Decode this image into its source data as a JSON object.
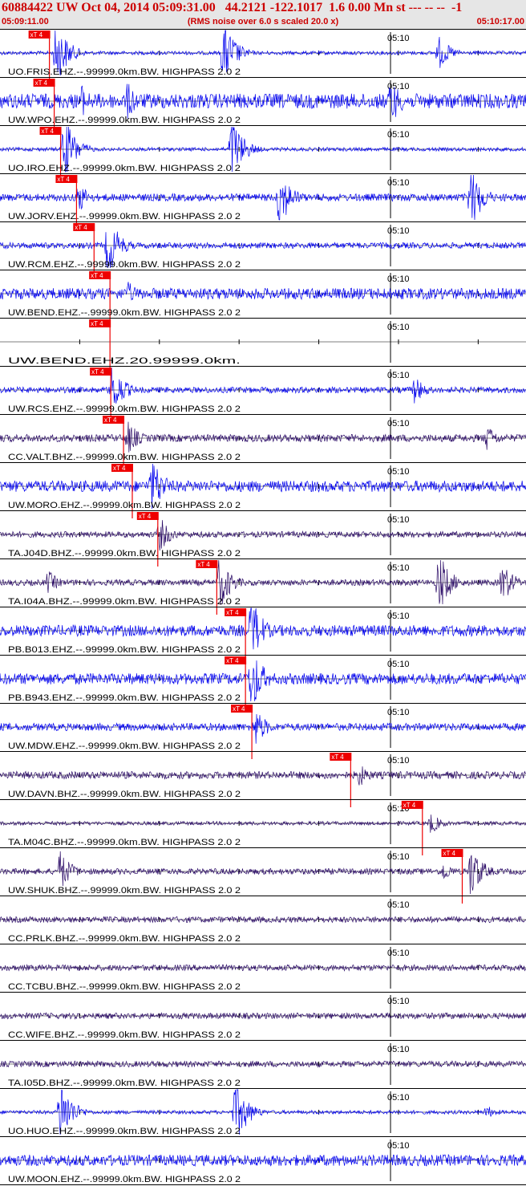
{
  "header": {
    "title": "60884422 UW Oct 04, 2014 05:09:31.00   44.2121 -122.1017  1.6 0.00 Mn st --- -- --  -1",
    "subtitle": "(RMS noise over 6.0 s scaled 20.0 x)",
    "start_time": "05:09:11.00",
    "end_time": "05:10:17.00"
  },
  "colors": {
    "header_bg": "#e6e6e6",
    "header_text": "#cc0000",
    "trace_blue": "#0000ee",
    "trace_purple": "#2a0a66",
    "pick_red": "#ee0000",
    "grid": "#000000"
  },
  "chart_data": {
    "type": "line",
    "x_unit": "time",
    "x_range": [
      "05:09:11.00",
      "05:10:17.00"
    ],
    "minute_marker": "05:10",
    "pick_label": "xT 4",
    "traces": [
      {
        "label": "UO.FRIS.EHZ.--.99999.0km.BW. HIGHPASS  2.0  2",
        "color": "blue",
        "pick_time": "05:09:17.2",
        "bursts": [
          {
            "t": "05:09:18.0",
            "amp": 1.0
          },
          {
            "t": "05:09:39.0",
            "amp": 1.0
          },
          {
            "t": "05:10:06.0",
            "amp": 0.5
          }
        ],
        "noise": 0.05
      },
      {
        "label": "UW.WPO.EHZ.--.99999.0km.BW. HIGHPASS  2.0  2",
        "color": "blue",
        "pick_time": "05:09:17.8",
        "bursts": [
          {
            "t": "05:09:21.0",
            "amp": 0.55
          },
          {
            "t": "05:09:27.0",
            "amp": 0.55
          },
          {
            "t": "05:10:00.0",
            "amp": 0.7
          }
        ],
        "noise": 0.2
      },
      {
        "label": "UO.IRO.EHZ.--.99999.0km.BW. HIGHPASS  2.0  2",
        "color": "blue",
        "pick_time": "05:09:18.6",
        "bursts": [
          {
            "t": "05:09:19.0",
            "amp": 1.0
          },
          {
            "t": "05:09:40.0",
            "amp": 1.0
          }
        ],
        "noise": 0.05
      },
      {
        "label": "UW.JORV.EHZ.--.99999.0km.BW. HIGHPASS  2.0  2",
        "color": "blue",
        "pick_time": "05:09:20.6",
        "bursts": [
          {
            "t": "05:09:20.8",
            "amp": 0.45
          },
          {
            "t": "05:09:46.0",
            "amp": 0.9
          },
          {
            "t": "05:10:10.0",
            "amp": 1.0
          }
        ],
        "noise": 0.1
      },
      {
        "label": "UW.RCM.EHZ.--.99999.0km.BW. HIGHPASS  2.0  2",
        "color": "blue",
        "pick_time": "05:09:22.8",
        "bursts": [
          {
            "t": "05:09:24.5",
            "amp": 0.9
          }
        ],
        "noise": 0.08
      },
      {
        "label": "UW.BEND.EHZ.--.99999.0km.BW. HIGHPASS  2.0  2",
        "color": "blue",
        "pick_time": "05:09:24.8",
        "bursts": [
          {
            "t": "05:09:27.0",
            "amp": 0.35
          }
        ],
        "noise": 0.15
      },
      {
        "label": "UW.BEND.EHZ.20.99999.0km.",
        "color": "blue",
        "pick_time": "05:09:24.8",
        "bursts": [],
        "noise": 0.0
      },
      {
        "label": "UW.RCS.EHZ.--.99999.0km.BW. HIGHPASS  2.0  2",
        "color": "blue",
        "pick_time": "05:09:24.9",
        "bursts": [
          {
            "t": "05:09:25.0",
            "amp": 0.8
          },
          {
            "t": "05:10:03.0",
            "amp": 0.4
          }
        ],
        "noise": 0.08
      },
      {
        "label": "CC.VALT.BHZ.--.99999.0km.BW. HIGHPASS  2.0  2",
        "color": "purple",
        "pick_time": "05:09:26.5",
        "bursts": [
          {
            "t": "05:09:27.0",
            "amp": 0.5
          },
          {
            "t": "05:10:12.0",
            "amp": 0.4
          }
        ],
        "noise": 0.1
      },
      {
        "label": "UW.MORO.EHZ.--.99999.0km.BW. HIGHPASS  2.0  2",
        "color": "blue",
        "pick_time": "05:09:27.6",
        "bursts": [
          {
            "t": "05:09:30.0",
            "amp": 0.9
          }
        ],
        "noise": 0.15
      },
      {
        "label": "TA.J04D.BHZ.--.99999.0km.BW. HIGHPASS  2.0  2",
        "color": "purple",
        "pick_time": "05:09:30.8",
        "bursts": [
          {
            "t": "05:09:31.0",
            "amp": 0.5
          }
        ],
        "noise": 0.08
      },
      {
        "label": "TA.I04A.BHZ.--.99999.0km.BW. HIGHPASS  2.0  2",
        "color": "purple",
        "pick_time": "05:09:38.2",
        "bursts": [
          {
            "t": "05:09:17.0",
            "amp": 0.35
          },
          {
            "t": "05:09:38.5",
            "amp": 0.8
          },
          {
            "t": "05:10:06.0",
            "amp": 0.9
          },
          {
            "t": "05:10:14.0",
            "amp": 0.6
          }
        ],
        "noise": 0.08
      },
      {
        "label": "PB.B013.EHZ.--.99999.0km.BW. HIGHPASS  2.0  2",
        "color": "blue",
        "pick_time": "05:09:41.8",
        "bursts": [
          {
            "t": "05:09:42.5",
            "amp": 1.0
          }
        ],
        "noise": 0.15
      },
      {
        "label": "PB.B943.EHZ.--.99999.0km.BW. HIGHPASS  2.0  2",
        "color": "blue",
        "pick_time": "05:09:41.8",
        "bursts": [
          {
            "t": "05:09:42.5",
            "amp": 1.0
          }
        ],
        "noise": 0.15
      },
      {
        "label": "UW.MDW.EHZ.--.99999.0km.BW. HIGHPASS  2.0  2",
        "color": "blue",
        "pick_time": "05:09:42.6",
        "bursts": [
          {
            "t": "05:09:43.0",
            "amp": 0.55
          }
        ],
        "noise": 0.1
      },
      {
        "label": "UW.DAVN.BHZ.--.99999.0km.BW. HIGHPASS  2.0  2",
        "color": "purple",
        "pick_time": "05:09:55.0",
        "bursts": [
          {
            "t": "05:09:56.0",
            "amp": 0.35
          }
        ],
        "noise": 0.1
      },
      {
        "label": "TA.M04C.BHZ.--.99999.0km.BW. HIGHPASS  2.0  2",
        "color": "purple",
        "pick_time": "05:10:04.0",
        "bursts": [
          {
            "t": "05:10:05.0",
            "amp": 0.3
          }
        ],
        "noise": 0.05
      },
      {
        "label": "UW.SHUK.BHZ.--.99999.0km.BW. HIGHPASS  2.0  2",
        "color": "purple",
        "pick_time": "05:10:09.0",
        "bursts": [
          {
            "t": "05:09:18.5",
            "amp": 0.6
          },
          {
            "t": "05:10:06.5",
            "amp": 0.3
          },
          {
            "t": "05:10:10.0",
            "amp": 0.8
          }
        ],
        "noise": 0.08
      },
      {
        "label": "CC.PRLK.BHZ.--.99999.0km.BW. HIGHPASS  2.0  2",
        "color": "purple",
        "pick_time": null,
        "bursts": [],
        "noise": 0.08
      },
      {
        "label": "CC.TCBU.BHZ.--.99999.0km.BW. HIGHPASS  2.0  2",
        "color": "purple",
        "pick_time": null,
        "bursts": [],
        "noise": 0.08
      },
      {
        "label": "CC.WIFE.BHZ.--.99999.0km.BW. HIGHPASS  2.0  2",
        "color": "purple",
        "pick_time": null,
        "bursts": [],
        "noise": 0.08
      },
      {
        "label": "TA.I05D.BHZ.--.99999.0km.BW. HIGHPASS  2.0  2",
        "color": "purple",
        "pick_time": null,
        "bursts": [],
        "noise": 0.08
      },
      {
        "label": "UO.HUO.EHZ.--.99999.0km.BW. HIGHPASS  2.0  2",
        "color": "blue",
        "pick_time": null,
        "bursts": [
          {
            "t": "05:09:18.5",
            "amp": 1.0
          },
          {
            "t": "05:09:40.5",
            "amp": 1.0
          },
          {
            "t": "05:10:12.0",
            "amp": 0.2
          }
        ],
        "noise": 0.05
      },
      {
        "label": "UW.MOON.EHZ.--.99999.0km.BW. HIGHPASS  2.0  2",
        "color": "blue",
        "pick_time": null,
        "bursts": [],
        "noise": 0.15
      }
    ]
  }
}
